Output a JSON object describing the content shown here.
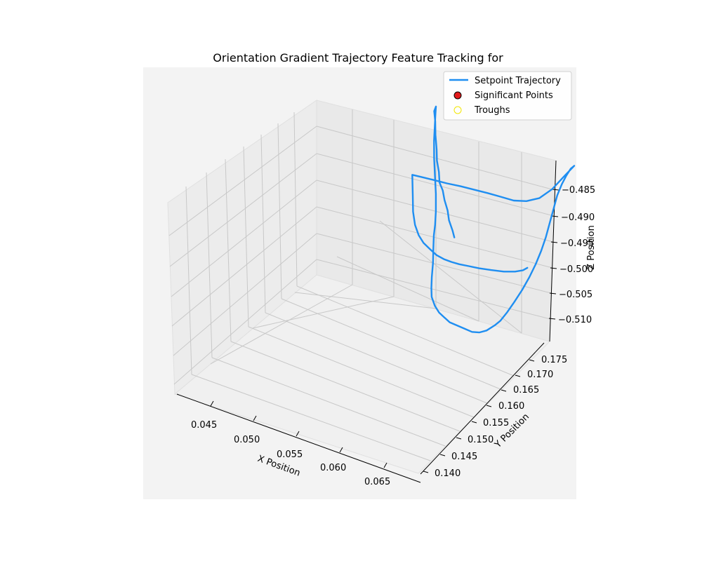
{
  "chart_data": {
    "type": "line",
    "title": "Orientation Gradient Trajectory Feature Tracking for",
    "xlabel": "X Position",
    "ylabel": "Y Position",
    "zlabel": "Z Position",
    "x_ticks": [
      "0.045",
      "0.050",
      "0.055",
      "0.060",
      "0.065"
    ],
    "y_ticks": [
      "0.140",
      "0.145",
      "0.150",
      "0.155",
      "0.160",
      "0.165",
      "0.170",
      "0.175"
    ],
    "z_ticks": [
      "−0.485",
      "−0.490",
      "−0.495",
      "−0.500",
      "−0.505",
      "−0.510"
    ],
    "legend": [
      {
        "label": "Setpoint Trajectory",
        "kind": "line",
        "color": "#1f8ef1"
      },
      {
        "label": "Significant Points",
        "kind": "marker",
        "color": "#e31a1c"
      },
      {
        "label": "Troughs",
        "kind": "hollow-marker",
        "color": "#f2e600"
      }
    ],
    "legend_position": "upper right",
    "grid": true,
    "series": [
      {
        "name": "Setpoint Trajectory",
        "color": "#1f8ef1",
        "points": [
          [
            0.047,
            0.17,
            -0.481
          ],
          [
            0.0471,
            0.1692,
            -0.483
          ],
          [
            0.047,
            0.1684,
            -0.4855
          ],
          [
            0.0471,
            0.1677,
            -0.488
          ],
          [
            0.047,
            0.167,
            -0.4905
          ],
          [
            0.0471,
            0.1662,
            -0.493
          ],
          [
            0.047,
            0.1655,
            -0.495
          ],
          [
            0.0471,
            0.165,
            -0.4975
          ],
          [
            0.047,
            0.1646,
            -0.5
          ],
          [
            0.0471,
            0.1642,
            -0.5025
          ],
          [
            0.047,
            0.164,
            -0.5055
          ],
          [
            0.0471,
            0.1636,
            -0.5085
          ],
          [
            0.0472,
            0.163,
            -0.511
          ],
          [
            0.0476,
            0.1625,
            -0.5125
          ],
          [
            0.048,
            0.1615,
            -0.512
          ],
          [
            0.0486,
            0.16,
            -0.511
          ],
          [
            0.0492,
            0.1585,
            -0.5095
          ],
          [
            0.0499,
            0.157,
            -0.5075
          ],
          [
            0.0507,
            0.1555,
            -0.5055
          ],
          [
            0.0515,
            0.154,
            -0.5035
          ],
          [
            0.0522,
            0.1525,
            -0.5015
          ],
          [
            0.0527,
            0.1512,
            -0.5
          ],
          [
            0.0531,
            0.15,
            -0.499
          ],
          [
            0.0536,
            0.1488,
            -0.4975
          ],
          [
            0.0542,
            0.1474,
            -0.496
          ],
          [
            0.0547,
            0.146,
            -0.4945
          ],
          [
            0.0552,
            0.1448,
            -0.4935
          ],
          [
            0.0556,
            0.144,
            -0.4925
          ],
          [
            0.056,
            0.144,
            -0.491
          ],
          [
            0.0561,
            0.145,
            -0.489
          ],
          [
            0.0561,
            0.1465,
            -0.487
          ],
          [
            0.0561,
            0.148,
            -0.485
          ],
          [
            0.0561,
            0.15,
            -0.483
          ],
          [
            0.0561,
            0.152,
            -0.481
          ],
          [
            0.0562,
            0.154,
            -0.479
          ],
          [
            0.0562,
            0.156,
            -0.4775
          ],
          [
            0.0562,
            0.158,
            -0.4765
          ],
          [
            0.0563,
            0.16,
            -0.4762
          ],
          [
            0.0565,
            0.161,
            -0.4765
          ],
          [
            0.0572,
            0.1612,
            -0.4785
          ],
          [
            0.058,
            0.1612,
            -0.481
          ],
          [
            0.0589,
            0.1612,
            -0.484
          ],
          [
            0.0597,
            0.1612,
            -0.487
          ],
          [
            0.0604,
            0.1612,
            -0.49
          ],
          [
            0.061,
            0.1612,
            -0.493
          ],
          [
            0.0615,
            0.1612,
            -0.496
          ],
          [
            0.0619,
            0.1612,
            -0.499
          ],
          [
            0.0623,
            0.1612,
            -0.502
          ],
          [
            0.0627,
            0.1612,
            -0.505
          ],
          [
            0.0632,
            0.1612,
            -0.5075
          ],
          [
            0.0637,
            0.1612,
            -0.5095
          ],
          [
            0.0642,
            0.1612,
            -0.5112
          ],
          [
            0.0646,
            0.1612,
            -0.512
          ],
          [
            0.0638,
            0.1605,
            -0.51
          ],
          [
            0.0626,
            0.16,
            -0.507
          ],
          [
            0.0612,
            0.1598,
            -0.5045
          ],
          [
            0.0597,
            0.1598,
            -0.503
          ],
          [
            0.0582,
            0.1598,
            -0.5022
          ],
          [
            0.0566,
            0.1598,
            -0.502
          ],
          [
            0.0551,
            0.1598,
            -0.5018
          ],
          [
            0.0535,
            0.1598,
            -0.5015
          ],
          [
            0.0519,
            0.1598,
            -0.5012
          ],
          [
            0.0503,
            0.1598,
            -0.5008
          ],
          [
            0.0487,
            0.1598,
            -0.5005
          ],
          [
            0.0472,
            0.1598,
            -0.5002
          ],
          [
            0.0462,
            0.1598,
            -0.5
          ],
          [
            0.047,
            0.1582,
            -0.4975
          ],
          [
            0.0476,
            0.157,
            -0.4955
          ],
          [
            0.0483,
            0.156,
            -0.494
          ],
          [
            0.0491,
            0.1552,
            -0.493
          ],
          [
            0.05,
            0.1545,
            -0.4925
          ],
          [
            0.051,
            0.154,
            -0.4922
          ],
          [
            0.052,
            0.1535,
            -0.492
          ],
          [
            0.053,
            0.1532,
            -0.492
          ],
          [
            0.054,
            0.153,
            -0.4922
          ],
          [
            0.055,
            0.1528,
            -0.4925
          ],
          [
            0.0562,
            0.1526,
            -0.493
          ],
          [
            0.0575,
            0.1524,
            -0.4935
          ],
          [
            0.059,
            0.1522,
            -0.4942
          ],
          [
            0.0606,
            0.152,
            -0.495
          ],
          [
            0.062,
            0.1518,
            -0.496
          ],
          [
            0.063,
            0.1516,
            -0.497
          ],
          [
            0.0636,
            0.1514,
            -0.498
          ]
        ]
      }
    ]
  }
}
